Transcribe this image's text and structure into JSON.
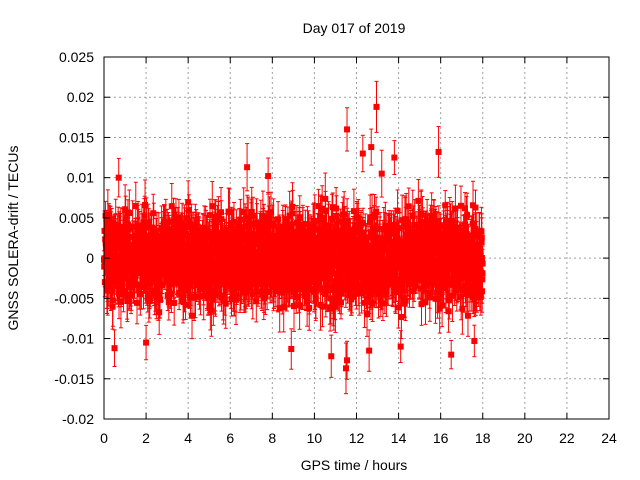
{
  "chart_data": {
    "type": "scatter",
    "title": "Day 017 of 2019",
    "xlabel": "GPS time / hours",
    "ylabel": "GNSS SOLERA-drift / TECUs",
    "xlim": [
      0,
      24
    ],
    "ylim": [
      -0.02,
      0.025
    ],
    "xticks": [
      "0",
      "2",
      "4",
      "6",
      "8",
      "10",
      "12",
      "14",
      "16",
      "18",
      "20",
      "22",
      "24"
    ],
    "yticks": [
      "-0.02",
      "-0.015",
      "-0.01",
      "-0.005",
      "0",
      "0.005",
      "0.01",
      "0.015",
      "0.02",
      "0.025"
    ],
    "grid": true,
    "color": "#ff0000",
    "series": [
      {
        "x_range": [
          0,
          18
        ],
        "x_step": 0.0083,
        "center": 0,
        "spread": [
          -0.008,
          0.008
        ],
        "error_bar": 0.0025,
        "extremes": [
          {
            "x": 11.55,
            "y": 0.016
          },
          {
            "x": 12.3,
            "y": 0.013
          },
          {
            "x": 12.7,
            "y": 0.0138
          },
          {
            "x": 12.95,
            "y": 0.0188
          },
          {
            "x": 13.2,
            "y": 0.0105
          },
          {
            "x": 13.8,
            "y": 0.0125
          },
          {
            "x": 15.9,
            "y": 0.0132
          },
          {
            "x": 6.8,
            "y": 0.0113
          },
          {
            "x": 7.8,
            "y": 0.0102
          },
          {
            "x": 0.7,
            "y": 0.01
          },
          {
            "x": 11.5,
            "y": -0.0137
          },
          {
            "x": 11.55,
            "y": -0.0127
          },
          {
            "x": 10.8,
            "y": -0.0122
          },
          {
            "x": 12.6,
            "y": -0.0115
          },
          {
            "x": 14.1,
            "y": -0.011
          },
          {
            "x": 16.5,
            "y": -0.012
          },
          {
            "x": 8.9,
            "y": -0.0113
          },
          {
            "x": 2.0,
            "y": -0.0105
          },
          {
            "x": 0.5,
            "y": -0.0112
          },
          {
            "x": 17.6,
            "y": -0.0103
          }
        ]
      }
    ]
  }
}
